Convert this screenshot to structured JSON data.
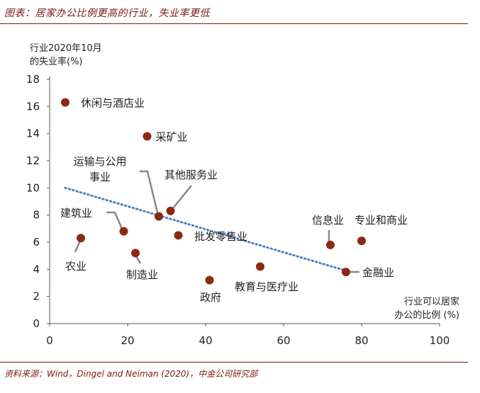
{
  "header": {
    "title": "图表：居家办公比例更高的行业，失业率更低"
  },
  "footer": {
    "source": "资料来源：Wind，Dingel and Neiman (2020)，中金公司研究部"
  },
  "colors": {
    "accent": "#7a1a10",
    "point": "#8b2a12",
    "trend": "#4f81bd"
  },
  "chart_data": {
    "type": "scatter",
    "title": "居家办公比例更高的行业，失业率更低",
    "ylabel_lines": [
      "行业2020年10月",
      "的失业率(%)"
    ],
    "xlabel_lines": [
      "行业可以居家",
      "办公的比例 (%)"
    ],
    "xlim": [
      0,
      100
    ],
    "ylim": [
      0,
      18
    ],
    "x_ticks": [
      0,
      20,
      40,
      60,
      80,
      100
    ],
    "y_ticks": [
      0,
      2,
      4,
      6,
      8,
      10,
      12,
      14,
      16,
      18
    ],
    "points": [
      {
        "label": "休闲与酒店业",
        "x": 4,
        "y": 16.3
      },
      {
        "label": "采矿业",
        "x": 25,
        "y": 13.8
      },
      {
        "label": "运输与公用事业",
        "label_lines": [
          "运输与公用",
          "事业"
        ],
        "x": 28,
        "y": 7.9
      },
      {
        "label": "其他服务业",
        "x": 31,
        "y": 8.3
      },
      {
        "label": "建筑业",
        "x": 19,
        "y": 6.8
      },
      {
        "label": "农业",
        "x": 8,
        "y": 6.3
      },
      {
        "label": "制造业",
        "x": 22,
        "y": 5.2
      },
      {
        "label": "批发零售业",
        "x": 33,
        "y": 6.5
      },
      {
        "label": "政府",
        "x": 41,
        "y": 3.2
      },
      {
        "label": "教育与医疗业",
        "x": 54,
        "y": 4.2
      },
      {
        "label": "信息业",
        "x": 72,
        "y": 5.8
      },
      {
        "label": "专业和商业",
        "x": 80,
        "y": 6.1
      },
      {
        "label": "金融业",
        "x": 76,
        "y": 3.8
      }
    ],
    "trendline": {
      "x0": 4,
      "y0": 10.0,
      "x1": 76,
      "y1": 3.9
    },
    "grid": false
  }
}
